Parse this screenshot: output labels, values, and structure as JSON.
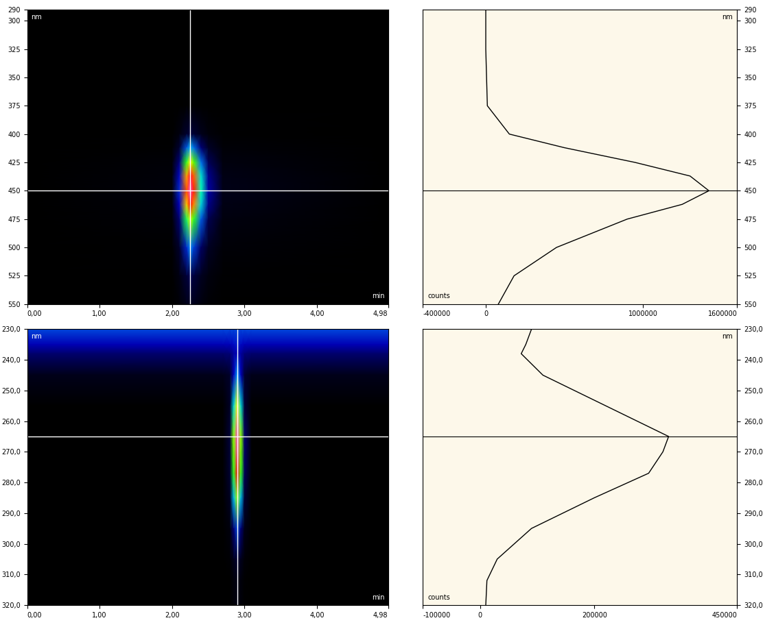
{
  "chart_data": [
    {
      "type": "heatmap",
      "x_label": "min",
      "y_label": "nm",
      "x": [
        0,
        2.0,
        2.1,
        2.2,
        2.25,
        2.3,
        2.4,
        2.5,
        2.7,
        4.98
      ],
      "y": [
        290,
        325,
        375,
        400,
        412,
        425,
        437,
        450,
        462,
        475,
        500,
        525,
        550
      ],
      "cells": [
        [
          0,
          0,
          0,
          0,
          0,
          0,
          0,
          0,
          0,
          0
        ],
        [
          0,
          0,
          0,
          0,
          0,
          0,
          0,
          0,
          0,
          0
        ],
        [
          0,
          200,
          2500,
          8000,
          10000,
          8500,
          4500,
          2000,
          400,
          0
        ],
        [
          0,
          3000,
          37500,
          120000,
          150000,
          127500,
          67500,
          30000,
          6000,
          0
        ],
        [
          0,
          10000,
          125000,
          400000,
          500000,
          425000,
          225000,
          100000,
          20000,
          0
        ],
        [
          0,
          19000,
          237500,
          760000,
          950000,
          807500,
          427500,
          190000,
          38000,
          0
        ],
        [
          0,
          26000,
          325000,
          1040000,
          1300000,
          1105000,
          585000,
          260000,
          52000,
          0
        ],
        [
          0,
          28400,
          355000,
          1136000,
          1420000,
          1207000,
          639000,
          284000,
          56800,
          0
        ],
        [
          0,
          25000,
          312500,
          1000000,
          1250000,
          1062500,
          562500,
          250000,
          50000,
          0
        ],
        [
          0,
          18000,
          225000,
          720000,
          900000,
          765000,
          405000,
          180000,
          36000,
          0
        ],
        [
          0,
          9000,
          112500,
          360000,
          450000,
          382500,
          202500,
          90000,
          18000,
          0
        ],
        [
          0,
          3600,
          45000,
          144000,
          180000,
          153000,
          81000,
          36000,
          7200,
          0
        ],
        [
          0,
          1600,
          20000,
          64000,
          80000,
          68000,
          36000,
          16000,
          3200,
          0
        ]
      ],
      "xlim": [
        0,
        4.98
      ],
      "xticks": [
        {
          "value": 0,
          "label": "0,00"
        },
        {
          "value": 1,
          "label": "1,00"
        },
        {
          "value": 2,
          "label": "2,00"
        },
        {
          "value": 3,
          "label": "3,00"
        },
        {
          "value": 4,
          "label": "4,00"
        },
        {
          "value": 4.98,
          "label": "4,98"
        }
      ],
      "ylim": [
        550,
        290
      ],
      "yticks": [
        290,
        300,
        325,
        350,
        375,
        400,
        425,
        450,
        475,
        500,
        525,
        550
      ],
      "cursor": [
        2.25,
        450
      ]
    },
    {
      "type": "line",
      "orientation": "horizontal",
      "x_label": "counts",
      "y_label": "nm",
      "color": "#000000",
      "y": [
        290,
        325,
        375,
        400,
        412,
        425,
        437,
        450,
        462,
        475,
        500,
        525,
        550
      ],
      "values": [
        0,
        0,
        10000,
        150000,
        500000,
        950000,
        1300000,
        1420000,
        1250000,
        900000,
        450000,
        180000,
        80000
      ],
      "xlim": [
        -400000,
        1600000
      ],
      "xticks": [
        -400000,
        0,
        1000000,
        1600000
      ],
      "ylim": [
        550,
        290
      ],
      "yticks": [
        290,
        300,
        325,
        350,
        375,
        400,
        425,
        450,
        475,
        500,
        525,
        550
      ],
      "cursor": 450
    },
    {
      "type": "heatmap",
      "x_label": "min",
      "y_label": "nm",
      "x": [
        0,
        2.7,
        2.8,
        2.85,
        2.9,
        2.95,
        3.0,
        3.1,
        4.98
      ],
      "y": [
        230,
        235,
        238,
        245,
        255,
        265,
        270,
        277,
        285,
        295,
        305,
        312,
        320
      ],
      "cells": [
        [
          90000,
          90000,
          90000,
          90000,
          90000,
          90000,
          90000,
          90000,
          90000
        ],
        [
          70000,
          70000,
          71000,
          76000,
          80000,
          76000,
          71500,
          70000,
          70000
        ],
        [
          50000,
          50000,
          52200,
          63200,
          72000,
          63200,
          53300,
          50000,
          50000
        ],
        [
          15000,
          15000,
          24500,
          72000,
          110000,
          72000,
          29250,
          15000,
          15000
        ],
        [
          0,
          0,
          22000,
          132000,
          220000,
          132000,
          33000,
          0,
          0
        ],
        [
          0,
          0,
          33000,
          198000,
          330000,
          198000,
          49500,
          0,
          0
        ],
        [
          0,
          0,
          32000,
          192000,
          320000,
          192000,
          48000,
          0,
          0
        ],
        [
          0,
          0,
          29500,
          177000,
          295000,
          177000,
          44250,
          0,
          0
        ],
        [
          0,
          0,
          20000,
          120000,
          200000,
          120000,
          30000,
          0,
          0
        ],
        [
          0,
          0,
          9000,
          54000,
          90000,
          54000,
          13500,
          0,
          0
        ],
        [
          0,
          0,
          3000,
          18000,
          30000,
          18000,
          4500,
          0,
          0
        ],
        [
          0,
          0,
          1200,
          7200,
          12000,
          7200,
          1800,
          0,
          0
        ],
        [
          0,
          0,
          1000,
          6000,
          10000,
          6000,
          1500,
          0,
          0
        ]
      ],
      "xlim": [
        0,
        4.98
      ],
      "xticks": [
        {
          "value": 0,
          "label": "0,00"
        },
        {
          "value": 1,
          "label": "1,00"
        },
        {
          "value": 2,
          "label": "2,00"
        },
        {
          "value": 3,
          "label": "3,00"
        },
        {
          "value": 4,
          "label": "4,00"
        },
        {
          "value": 4.98,
          "label": "4,98"
        }
      ],
      "ylim": [
        320,
        230
      ],
      "yticks": [
        {
          "value": 230,
          "label": "230,0"
        },
        {
          "value": 240,
          "label": "240,0"
        },
        {
          "value": 250,
          "label": "250,0"
        },
        {
          "value": 260,
          "label": "260,0"
        },
        {
          "value": 270,
          "label": "270,0"
        },
        {
          "value": 280,
          "label": "280,0"
        },
        {
          "value": 290,
          "label": "290,0"
        },
        {
          "value": 300,
          "label": "300,0"
        },
        {
          "value": 310,
          "label": "310,0"
        },
        {
          "value": 320,
          "label": "320,0"
        }
      ],
      "cursor": [
        2.9,
        265
      ]
    },
    {
      "type": "line",
      "orientation": "horizontal",
      "x_label": "counts",
      "y_label": "nm",
      "color": "#000000",
      "y": [
        230,
        235,
        238,
        245,
        255,
        265,
        270,
        277,
        285,
        295,
        305,
        312,
        320
      ],
      "values": [
        90000,
        80000,
        72000,
        110000,
        220000,
        330000,
        320000,
        295000,
        200000,
        90000,
        30000,
        12000,
        10000
      ],
      "xlim": [
        -100000,
        450000
      ],
      "xticks": [
        -100000,
        0,
        200000,
        450000
      ],
      "ylim": [
        320,
        230
      ],
      "yticks": [
        {
          "value": 230,
          "label": "230,0"
        },
        {
          "value": 240,
          "label": "240,0"
        },
        {
          "value": 250,
          "label": "250,0"
        },
        {
          "value": 260,
          "label": "260,0"
        },
        {
          "value": 270,
          "label": "270,0"
        },
        {
          "value": 280,
          "label": "280,0"
        },
        {
          "value": 290,
          "label": "290,0"
        },
        {
          "value": 300,
          "label": "300,0"
        },
        {
          "value": 310,
          "label": "310,0"
        },
        {
          "value": 320,
          "label": "320,0"
        }
      ],
      "cursor": 265
    }
  ]
}
